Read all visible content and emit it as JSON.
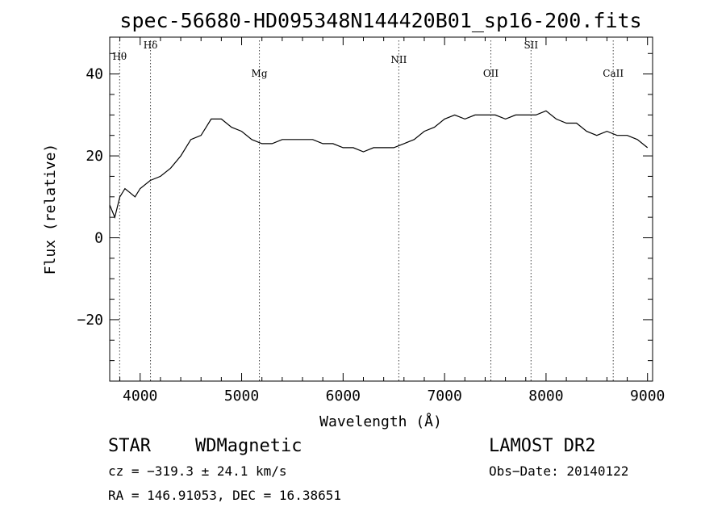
{
  "chart_data": {
    "type": "line",
    "title": "spec-56680-HD095348N144420B01_sp16-200.fits",
    "xlabel": "Wavelength (Å)",
    "ylabel": "Flux (relative)",
    "xlim": [
      3700,
      9050
    ],
    "ylim": [
      -35,
      49
    ],
    "xticks": [
      4000,
      5000,
      6000,
      7000,
      8000,
      9000
    ],
    "xtick_labels": [
      "4000",
      "5000",
      "6000",
      "7000",
      "8000",
      "9000"
    ],
    "yticks": [
      -20,
      0,
      20,
      40
    ],
    "ytick_labels": [
      "−20",
      "0",
      "20",
      "40"
    ],
    "grid": false,
    "series": [
      {
        "x": [
          3700,
          3750,
          3800,
          3850,
          3900,
          3950,
          4000,
          4100,
          4200,
          4300,
          4400,
          4500,
          4600,
          4700,
          4800,
          4900,
          5000,
          5100,
          5200,
          5300,
          5400,
          5500,
          5600,
          5700,
          5800,
          5900,
          6000,
          6100,
          6200,
          6300,
          6400,
          6500,
          6600,
          6700,
          6800,
          6900,
          7000,
          7100,
          7200,
          7300,
          7400,
          7500,
          7600,
          7700,
          7800,
          7900,
          8000,
          8100,
          8200,
          8300,
          8400,
          8500,
          8600,
          8700,
          8800,
          8900,
          9000
        ],
        "y": [
          8,
          5,
          10,
          12,
          11,
          10,
          12,
          14,
          15,
          17,
          20,
          24,
          25,
          29,
          29,
          27,
          26,
          24,
          23,
          23,
          24,
          24,
          24,
          24,
          23,
          23,
          22,
          22,
          21,
          22,
          22,
          22,
          23,
          24,
          26,
          27,
          29,
          30,
          29,
          30,
          30,
          30,
          29,
          30,
          30,
          30,
          31,
          29,
          28,
          28,
          26,
          25,
          26,
          25,
          25,
          24,
          22
        ]
      }
    ],
    "spectral_lines": [
      {
        "label": "Hθ",
        "wavelength": 3798
      },
      {
        "label": "Hδ",
        "wavelength": 4102
      },
      {
        "label": "Mg",
        "wavelength": 5175
      },
      {
        "label": "NII",
        "wavelength": 6549
      },
      {
        "label": "OII",
        "wavelength": 7456
      },
      {
        "label": "SII",
        "wavelength": 7852
      },
      {
        "label": "CaII",
        "wavelength": 8662
      }
    ]
  },
  "info": {
    "class": "STAR",
    "subclass": "WDMagnetic",
    "survey": "LAMOST DR2",
    "cz": "cz = −319.3 ± 24.1 km/s",
    "obs_date": "Obs−Date: 20140122",
    "radec": "RA = 146.91053, DEC =  16.38651"
  }
}
